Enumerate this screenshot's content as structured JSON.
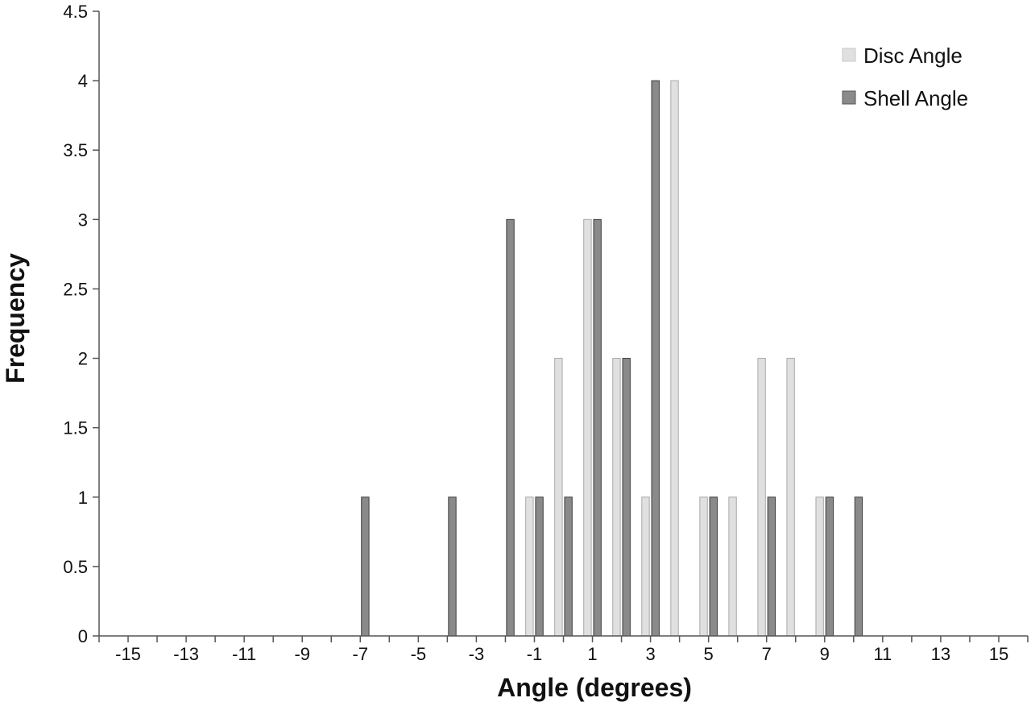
{
  "chart_data": {
    "type": "bar",
    "xlabel": "Angle (degrees)",
    "ylabel": "Frequency",
    "ylim": [
      0,
      4.5
    ],
    "xlim": [
      -16,
      16
    ],
    "y_ticks": [
      "0",
      "0.5",
      "1",
      "1.5",
      "2",
      "2.5",
      "3",
      "3.5",
      "4",
      "4.5"
    ],
    "x_ticks": [
      "-15",
      "-13",
      "-11",
      "-9",
      "-7",
      "-5",
      "-3",
      "-1",
      "1",
      "3",
      "5",
      "7",
      "9",
      "11",
      "13",
      "15"
    ],
    "grid": false,
    "legend_position": "top-right",
    "categories": [
      -15,
      -14,
      -13,
      -12,
      -11,
      -10,
      -9,
      -8,
      -7,
      -6,
      -5,
      -4,
      -3,
      -2,
      -1,
      0,
      1,
      2,
      3,
      4,
      5,
      6,
      7,
      8,
      9,
      10,
      11,
      12,
      13,
      14,
      15
    ],
    "series": [
      {
        "name": "Disc Angle",
        "color": "#e0e0e0",
        "values": [
          0,
          0,
          0,
          0,
          0,
          0,
          0,
          0,
          0,
          0,
          0,
          0,
          0,
          0,
          1,
          2,
          3,
          2,
          1,
          4,
          1,
          1,
          2,
          2,
          1,
          0,
          0,
          0,
          0,
          0,
          0
        ]
      },
      {
        "name": "Shell Angle",
        "color": "#8a8a8a",
        "values": [
          0,
          0,
          0,
          0,
          0,
          0,
          0,
          0,
          1,
          0,
          0,
          1,
          0,
          3,
          1,
          1,
          3,
          2,
          4,
          0,
          1,
          0,
          1,
          0,
          1,
          1,
          0,
          0,
          0,
          0,
          0
        ]
      }
    ]
  }
}
